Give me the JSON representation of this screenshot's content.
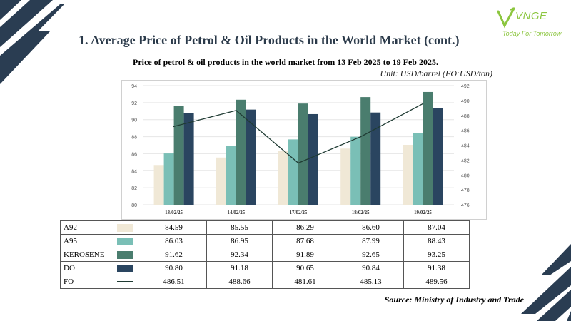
{
  "logo": {
    "brand": "VNGE",
    "tagline": "Today For Tomorrow"
  },
  "page_title": "1. Average Price of Petrol & Oil Products in the World Market (cont.)",
  "source": "Source: Ministry of Industry and Trade",
  "colors": {
    "A92": "#f0e8d6",
    "A95": "#7abfb6",
    "KEROSENE": "#4a7d6e",
    "DO": "#2a4560",
    "FO": "#1f3b33",
    "deco": "#2a3d52"
  },
  "chart_data": {
    "type": "bar",
    "title": "Price of petrol & oil products in the world market from 13 Feb 2025 to 19 Feb 2025.",
    "unit_note": "Unit: USD/barrel (FO:USD/ton)",
    "categories": [
      "13/02/25",
      "14/02/25",
      "17/02/25",
      "18/02/25",
      "19/02/25"
    ],
    "series": [
      {
        "name": "A92",
        "type": "bar",
        "axis": "left",
        "values": [
          84.59,
          85.55,
          86.29,
          86.6,
          87.04
        ]
      },
      {
        "name": "A95",
        "type": "bar",
        "axis": "left",
        "values": [
          86.03,
          86.95,
          87.68,
          87.99,
          88.43
        ]
      },
      {
        "name": "KEROSENE",
        "type": "bar",
        "axis": "left",
        "values": [
          91.62,
          92.34,
          91.89,
          92.65,
          93.25
        ]
      },
      {
        "name": "DO",
        "type": "bar",
        "axis": "left",
        "values": [
          90.8,
          91.18,
          90.65,
          90.84,
          91.38
        ]
      },
      {
        "name": "FO",
        "type": "line",
        "axis": "right",
        "values": [
          486.51,
          488.66,
          481.61,
          485.13,
          489.56
        ]
      }
    ],
    "y_left": {
      "min": 80,
      "max": 94,
      "ticks": [
        "80",
        "82",
        "84",
        "86",
        "88",
        "90",
        "92",
        "94"
      ]
    },
    "y_right": {
      "min": 476,
      "max": 492,
      "ticks": [
        "476",
        "478",
        "480",
        "482",
        "484",
        "486",
        "488",
        "490",
        "492"
      ]
    },
    "grid": true,
    "legend": "table-below",
    "table": [
      {
        "name": "A92",
        "values": [
          "84.59",
          "85.55",
          "86.29",
          "86.60",
          "87.04"
        ]
      },
      {
        "name": "A95",
        "values": [
          "86.03",
          "86.95",
          "87.68",
          "87.99",
          "88.43"
        ]
      },
      {
        "name": "KEROSENE",
        "values": [
          "91.62",
          "92.34",
          "91.89",
          "92.65",
          "93.25"
        ]
      },
      {
        "name": "DO",
        "values": [
          "90.80",
          "91.18",
          "90.65",
          "90.84",
          "91.38"
        ]
      },
      {
        "name": "FO",
        "values": [
          "486.51",
          "488.66",
          "481.61",
          "485.13",
          "489.56"
        ]
      }
    ]
  }
}
